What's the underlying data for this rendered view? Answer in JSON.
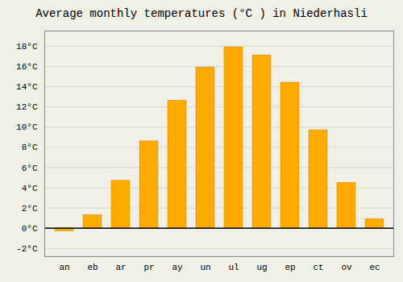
{
  "chart_data": {
    "type": "bar",
    "title": "Average monthly temperatures (°C ) in Niederhasli",
    "categories": [
      "an",
      "eb",
      "ar",
      "pr",
      "ay",
      "un",
      "ul",
      "ug",
      "ep",
      "ct",
      "ov",
      "ec"
    ],
    "values": [
      -0.3,
      1.3,
      4.7,
      8.6,
      12.6,
      15.9,
      17.9,
      17.1,
      14.4,
      9.7,
      4.5,
      0.9
    ],
    "color": "#FFAA00",
    "ylim": [
      -2.8,
      19.5
    ],
    "yticks": [
      {
        "value": -2,
        "label": "-2°C"
      },
      {
        "value": 0,
        "label": "0°C"
      },
      {
        "value": 2,
        "label": "2°C"
      },
      {
        "value": 4,
        "label": "4°C"
      },
      {
        "value": 6,
        "label": "6°C"
      },
      {
        "value": 8,
        "label": "8°C"
      },
      {
        "value": 10,
        "label": "10°C"
      },
      {
        "value": 12,
        "label": "12°C"
      },
      {
        "value": 14,
        "label": "14°C"
      },
      {
        "value": 16,
        "label": "16°C"
      },
      {
        "value": 18,
        "label": "18°C"
      }
    ],
    "grid": true
  }
}
